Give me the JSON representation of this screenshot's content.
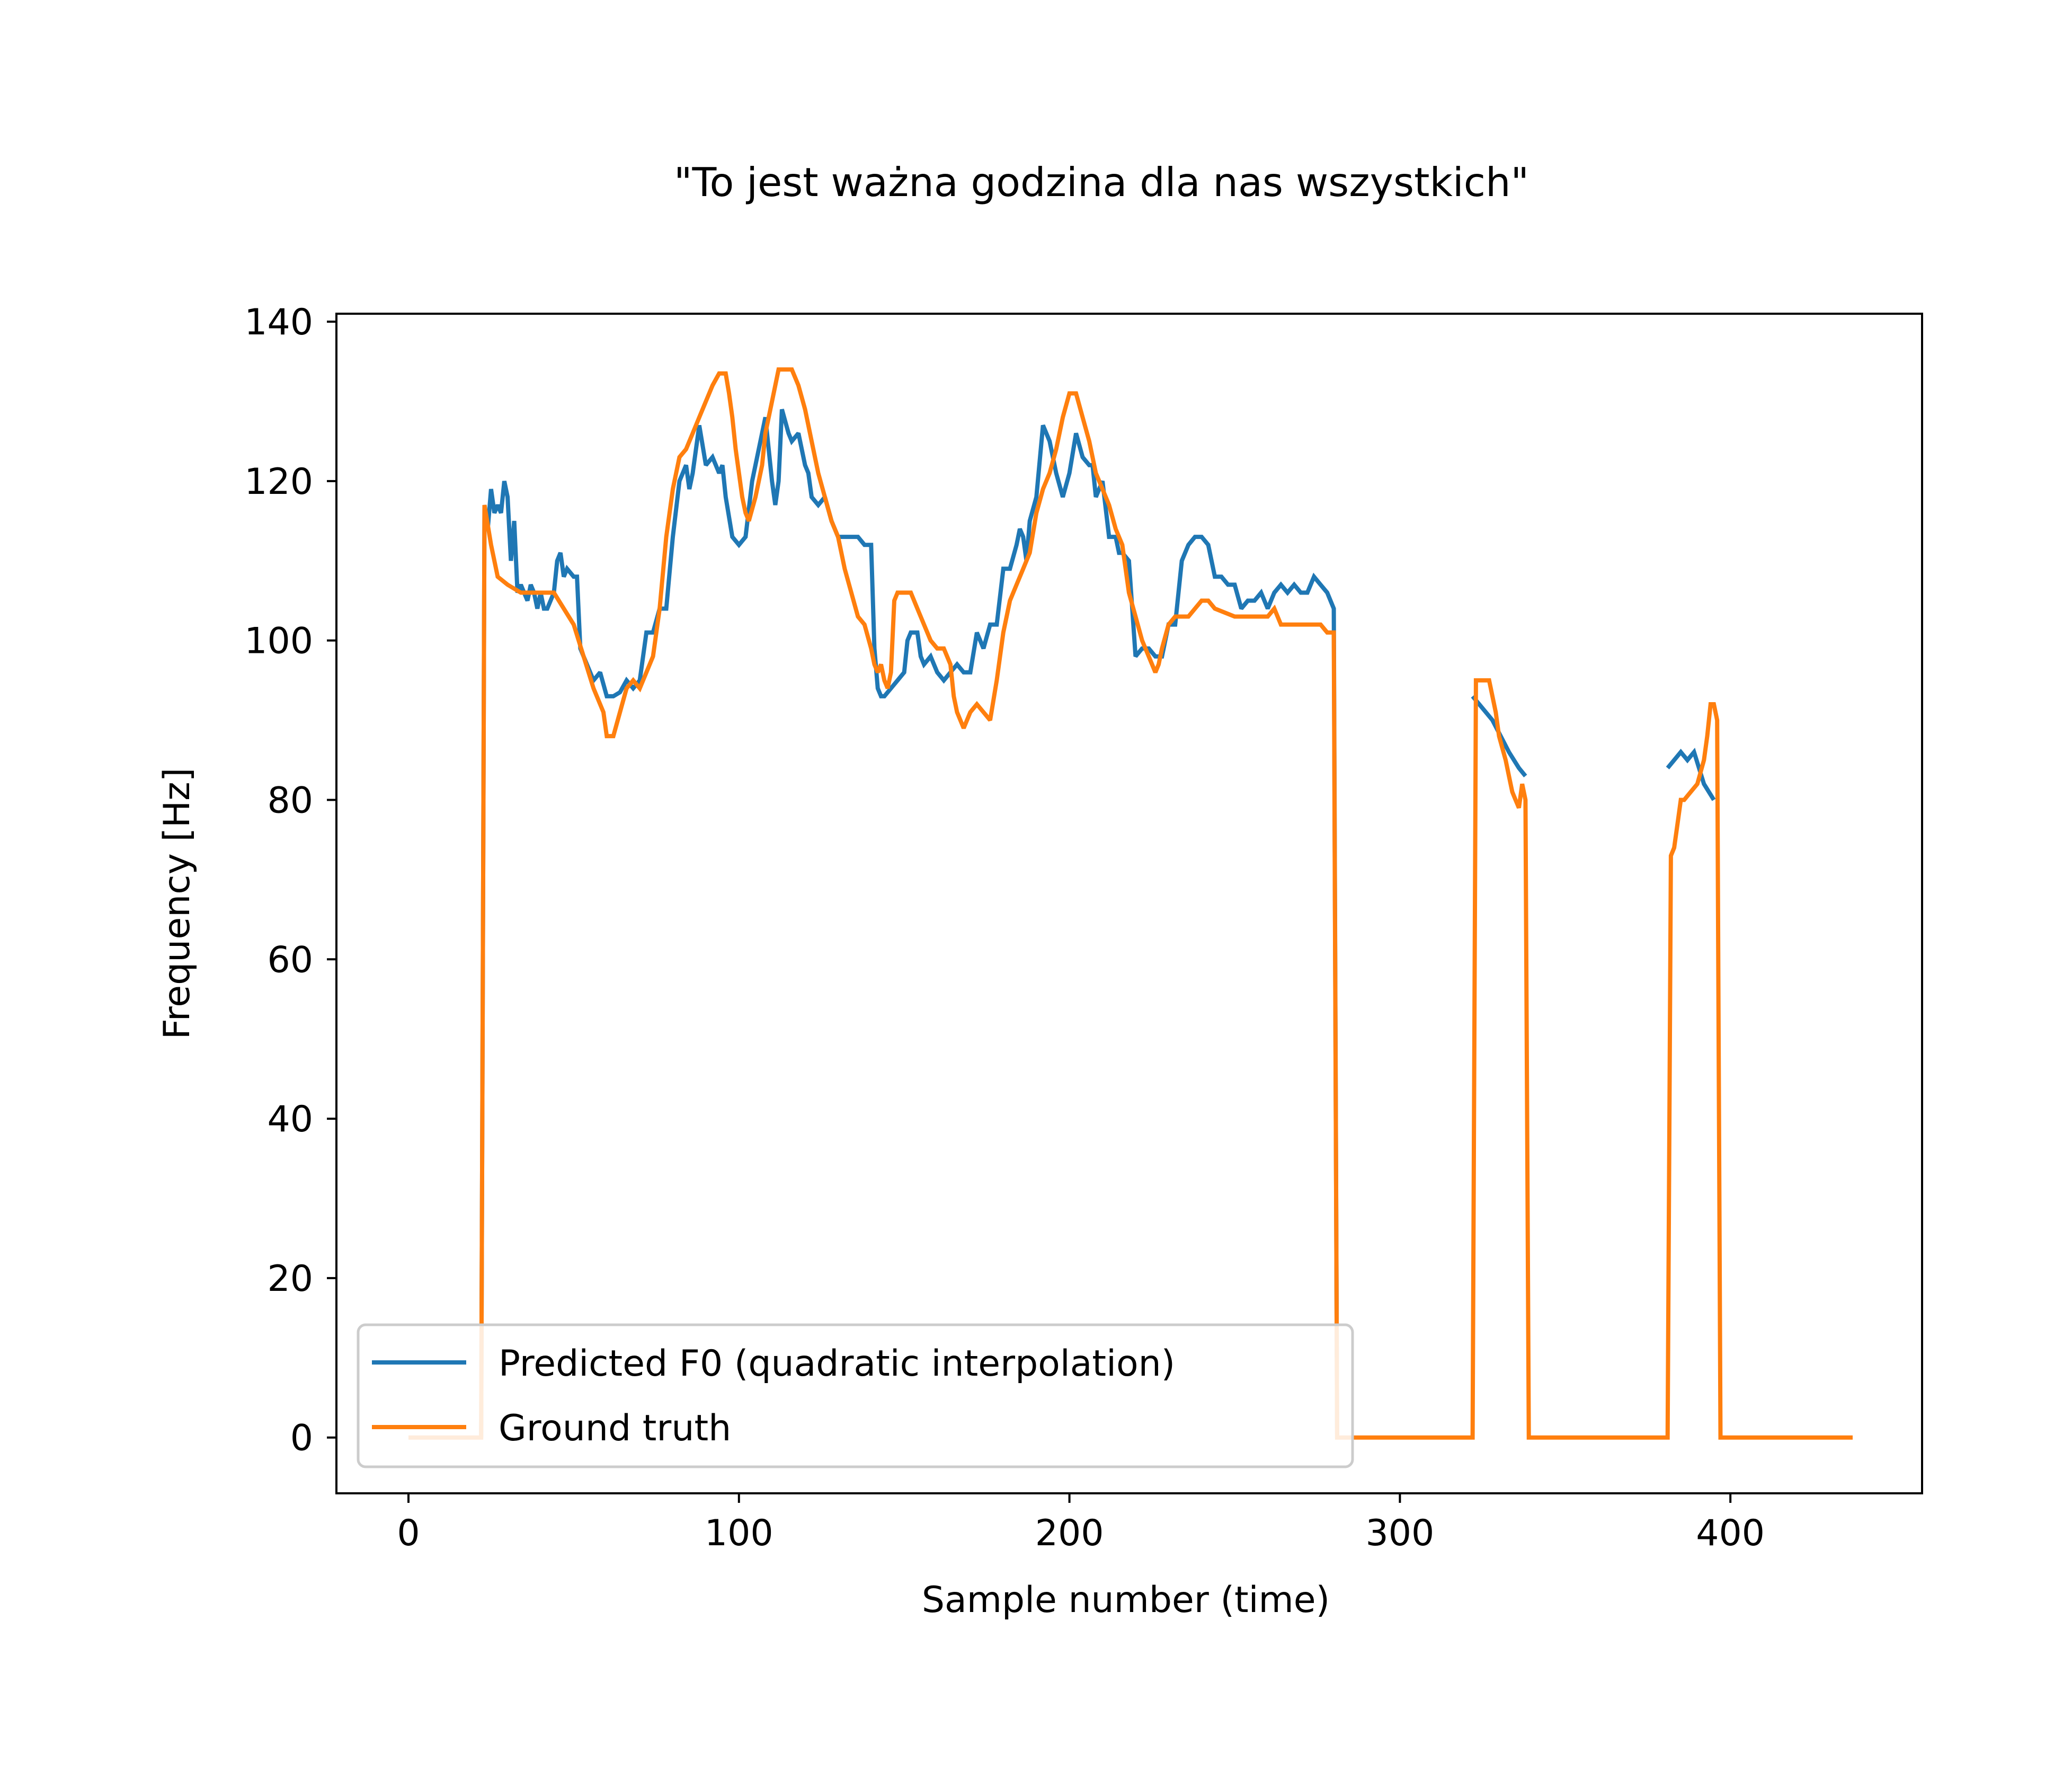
{
  "chart_data": {
    "type": "line",
    "title": "\"To jest ważna godzina dla nas wszystkich\"",
    "xlabel": "Sample number (time)",
    "ylabel": "Frequency [Hz]",
    "xlim": [
      -21.8,
      458
    ],
    "ylim": [
      -7,
      141
    ],
    "xticks": [
      0,
      100,
      200,
      300,
      400
    ],
    "yticks": [
      0,
      20,
      40,
      60,
      80,
      100,
      120,
      140
    ],
    "grid": false,
    "legend_position": "lower left",
    "series": [
      {
        "name": "Predicted F0 (quadratic interpolation)",
        "color": "#1f77b4",
        "points": [
          [
            22,
            0
          ],
          [
            23,
            117
          ],
          [
            24,
            114
          ],
          [
            25,
            119
          ],
          [
            26,
            116
          ],
          [
            27,
            117
          ],
          [
            28,
            116
          ],
          [
            29,
            120
          ],
          [
            30,
            118
          ],
          [
            31,
            110
          ],
          [
            32,
            115
          ],
          [
            33,
            106
          ],
          [
            34,
            107
          ],
          [
            35,
            106
          ],
          [
            36,
            105
          ],
          [
            37,
            107
          ],
          [
            38,
            106
          ],
          [
            39,
            104
          ],
          [
            40,
            106
          ],
          [
            41,
            104
          ],
          [
            42,
            104
          ],
          [
            44,
            106
          ],
          [
            45,
            110
          ],
          [
            46,
            111
          ],
          [
            47,
            108
          ],
          [
            48,
            109
          ],
          [
            50,
            108
          ],
          [
            51,
            108
          ],
          [
            52,
            99
          ],
          [
            54,
            97
          ],
          [
            56,
            95
          ],
          [
            58,
            96
          ],
          [
            60,
            93
          ],
          [
            62,
            93
          ],
          [
            64,
            93.5
          ],
          [
            66,
            95
          ],
          [
            68,
            94
          ],
          [
            70,
            95
          ],
          [
            72,
            101
          ],
          [
            74,
            101
          ],
          [
            76,
            104
          ],
          [
            78,
            104
          ],
          [
            80,
            113
          ],
          [
            82,
            120
          ],
          [
            84,
            122
          ],
          [
            85,
            119
          ],
          [
            86,
            121
          ],
          [
            88,
            127
          ],
          [
            90,
            122
          ],
          [
            92,
            123
          ],
          [
            94,
            121
          ],
          [
            95,
            122
          ],
          [
            96,
            118
          ],
          [
            98,
            113
          ],
          [
            100,
            112
          ],
          [
            102,
            113
          ],
          [
            104,
            120
          ],
          [
            106,
            124
          ],
          [
            108,
            128
          ],
          [
            110,
            120
          ],
          [
            111,
            117
          ],
          [
            112,
            120
          ],
          [
            113,
            129
          ],
          [
            115,
            126
          ],
          [
            116,
            125
          ],
          [
            118,
            126
          ],
          [
            120,
            122
          ],
          [
            121,
            121
          ],
          [
            122,
            118
          ],
          [
            124,
            117
          ],
          [
            126,
            118
          ],
          [
            128,
            115
          ],
          [
            130,
            113
          ],
          [
            132,
            113
          ],
          [
            134,
            113
          ],
          [
            136,
            113
          ],
          [
            138,
            112
          ],
          [
            140,
            112
          ],
          [
            141,
            99
          ],
          [
            142,
            94
          ],
          [
            143,
            93
          ],
          [
            144,
            93
          ],
          [
            146,
            94
          ],
          [
            148,
            95
          ],
          [
            150,
            96
          ],
          [
            151,
            100
          ],
          [
            152,
            101
          ],
          [
            154,
            101
          ],
          [
            155,
            98
          ],
          [
            156,
            97
          ],
          [
            158,
            98
          ],
          [
            160,
            96
          ],
          [
            162,
            95
          ],
          [
            164,
            96
          ],
          [
            166,
            97
          ],
          [
            168,
            96
          ],
          [
            170,
            96
          ],
          [
            172,
            101
          ],
          [
            174,
            99
          ],
          [
            176,
            102
          ],
          [
            178,
            102
          ],
          [
            180,
            109
          ],
          [
            182,
            109
          ],
          [
            184,
            112
          ],
          [
            185,
            114
          ],
          [
            186,
            113
          ],
          [
            187,
            110
          ],
          [
            188,
            115
          ],
          [
            190,
            118
          ],
          [
            192,
            127
          ],
          [
            194,
            125
          ],
          [
            196,
            121
          ],
          [
            198,
            118
          ],
          [
            200,
            121
          ],
          [
            202,
            126
          ],
          [
            204,
            123
          ],
          [
            206,
            122
          ],
          [
            207,
            122
          ],
          [
            208,
            118
          ],
          [
            210,
            120
          ],
          [
            212,
            113
          ],
          [
            214,
            113
          ],
          [
            215,
            111
          ],
          [
            216,
            111
          ],
          [
            218,
            110
          ],
          [
            220,
            98
          ],
          [
            222,
            99
          ],
          [
            224,
            99
          ],
          [
            226,
            98
          ],
          [
            228,
            98
          ],
          [
            230,
            102
          ],
          [
            232,
            102
          ],
          [
            234,
            110
          ],
          [
            236,
            112
          ],
          [
            238,
            113
          ],
          [
            240,
            113
          ],
          [
            242,
            112
          ],
          [
            244,
            108
          ],
          [
            246,
            108
          ],
          [
            248,
            107
          ],
          [
            250,
            107
          ],
          [
            252,
            104
          ],
          [
            254,
            105
          ],
          [
            256,
            105
          ],
          [
            258,
            106
          ],
          [
            260,
            104
          ],
          [
            262,
            106
          ],
          [
            264,
            107
          ],
          [
            266,
            106
          ],
          [
            268,
            107
          ],
          [
            270,
            106
          ],
          [
            272,
            106
          ],
          [
            274,
            108
          ],
          [
            276,
            107
          ],
          [
            278,
            106
          ],
          [
            280,
            104
          ],
          [
            281,
            0
          ]
        ],
        "segments": [
          [
            [
              322,
              93
            ],
            [
              328,
              90
            ],
            [
              333,
              86
            ],
            [
              336,
              84
            ],
            [
              338,
              83
            ]
          ],
          [
            [
              381,
              84
            ],
            [
              383,
              85
            ],
            [
              385,
              86
            ],
            [
              387,
              85
            ],
            [
              389,
              86
            ],
            [
              392,
              82
            ],
            [
              395,
              80
            ]
          ]
        ]
      },
      {
        "name": "Ground truth",
        "color": "#ff7f0e",
        "points": [
          [
            0,
            0
          ],
          [
            22,
            0
          ],
          [
            23,
            117
          ],
          [
            25,
            112
          ],
          [
            27,
            108
          ],
          [
            30,
            107
          ],
          [
            34,
            106
          ],
          [
            40,
            106
          ],
          [
            44,
            106
          ],
          [
            47,
            104
          ],
          [
            50,
            102
          ],
          [
            53,
            98
          ],
          [
            56,
            94
          ],
          [
            59,
            91
          ],
          [
            60,
            88
          ],
          [
            62,
            88
          ],
          [
            64,
            91
          ],
          [
            66,
            94
          ],
          [
            68,
            95
          ],
          [
            70,
            94
          ],
          [
            72,
            96
          ],
          [
            74,
            98
          ],
          [
            76,
            104
          ],
          [
            78,
            113
          ],
          [
            80,
            119
          ],
          [
            82,
            123
          ],
          [
            84,
            124
          ],
          [
            86,
            126
          ],
          [
            88,
            128
          ],
          [
            90,
            130
          ],
          [
            92,
            132
          ],
          [
            94,
            133.5
          ],
          [
            96,
            133.5
          ],
          [
            97,
            131
          ],
          [
            98,
            128
          ],
          [
            99,
            124
          ],
          [
            100,
            121
          ],
          [
            101,
            118
          ],
          [
            102,
            116
          ],
          [
            103,
            115
          ],
          [
            105,
            118
          ],
          [
            107,
            122
          ],
          [
            108,
            126
          ],
          [
            110,
            130
          ],
          [
            112,
            134
          ],
          [
            114,
            134
          ],
          [
            116,
            134
          ],
          [
            118,
            132
          ],
          [
            120,
            129
          ],
          [
            122,
            125
          ],
          [
            124,
            121
          ],
          [
            126,
            118
          ],
          [
            128,
            115
          ],
          [
            130,
            113
          ],
          [
            132,
            109
          ],
          [
            134,
            106
          ],
          [
            136,
            103
          ],
          [
            138,
            102
          ],
          [
            140,
            99
          ],
          [
            141,
            97
          ],
          [
            142,
            96
          ],
          [
            143,
            97
          ],
          [
            144,
            95
          ],
          [
            145,
            94
          ],
          [
            146,
            96
          ],
          [
            147,
            105
          ],
          [
            148,
            106
          ],
          [
            150,
            106
          ],
          [
            152,
            106
          ],
          [
            154,
            104
          ],
          [
            156,
            102
          ],
          [
            158,
            100
          ],
          [
            160,
            99
          ],
          [
            162,
            99
          ],
          [
            164,
            97
          ],
          [
            165,
            93
          ],
          [
            166,
            91
          ],
          [
            168,
            89
          ],
          [
            170,
            91
          ],
          [
            172,
            92
          ],
          [
            174,
            91
          ],
          [
            176,
            90
          ],
          [
            178,
            95
          ],
          [
            180,
            101
          ],
          [
            182,
            105
          ],
          [
            184,
            107
          ],
          [
            186,
            109
          ],
          [
            188,
            111
          ],
          [
            190,
            116
          ],
          [
            192,
            119
          ],
          [
            194,
            121
          ],
          [
            196,
            124
          ],
          [
            198,
            128
          ],
          [
            200,
            131
          ],
          [
            202,
            131
          ],
          [
            204,
            128
          ],
          [
            206,
            125
          ],
          [
            208,
            121
          ],
          [
            210,
            119
          ],
          [
            212,
            117
          ],
          [
            214,
            114
          ],
          [
            216,
            112
          ],
          [
            218,
            106
          ],
          [
            220,
            103
          ],
          [
            222,
            100
          ],
          [
            224,
            98
          ],
          [
            226,
            96
          ],
          [
            227,
            97
          ],
          [
            228,
            99
          ],
          [
            230,
            102
          ],
          [
            232,
            103
          ],
          [
            234,
            103
          ],
          [
            236,
            103
          ],
          [
            238,
            104
          ],
          [
            240,
            105
          ],
          [
            242,
            105
          ],
          [
            244,
            104
          ],
          [
            250,
            103
          ],
          [
            258,
            103
          ],
          [
            260,
            103
          ],
          [
            262,
            104
          ],
          [
            264,
            102
          ],
          [
            270,
            102
          ],
          [
            276,
            102
          ],
          [
            278,
            101
          ],
          [
            280,
            101
          ],
          [
            281,
            0
          ],
          [
            322,
            0
          ],
          [
            323,
            95
          ],
          [
            325,
            95
          ],
          [
            327,
            95
          ],
          [
            329,
            91
          ],
          [
            330,
            88
          ],
          [
            332,
            85
          ],
          [
            333,
            83
          ],
          [
            334,
            81
          ],
          [
            335,
            80
          ],
          [
            336,
            79
          ],
          [
            337,
            82
          ],
          [
            338,
            80
          ],
          [
            339,
            0
          ],
          [
            381,
            0
          ],
          [
            382,
            73
          ],
          [
            383,
            74
          ],
          [
            384,
            77
          ],
          [
            385,
            80
          ],
          [
            386,
            80
          ],
          [
            388,
            81
          ],
          [
            390,
            82
          ],
          [
            392,
            85
          ],
          [
            393,
            88
          ],
          [
            394,
            92
          ],
          [
            395,
            92
          ],
          [
            396,
            90
          ],
          [
            397,
            0
          ],
          [
            437,
            0
          ]
        ]
      }
    ]
  }
}
